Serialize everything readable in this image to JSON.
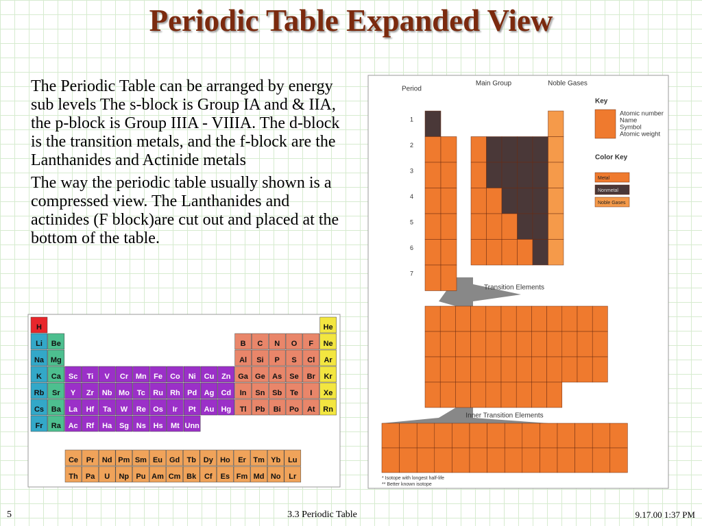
{
  "title": "Periodic Table Expanded View",
  "paragraphs": [
    "The Periodic Table can be arranged by  energy sub levels  The s-block is Group IA and & IIA, the p-block is Group IIIA - VIIIA.  The d-block is the transition metals, and the f-block are the Lanthanides and Actinide metals",
    "The way the periodic table usually shown  is a compressed view. The Lanthanides and actinides (F block)are cut out and placed at the bottom of the table."
  ],
  "compressed_table": {
    "periods": [
      [
        "H",
        "He"
      ],
      [
        "Li",
        "Be",
        "B",
        "C",
        "N",
        "O",
        "F",
        "Ne"
      ],
      [
        "Na",
        "Mg",
        "Al",
        "Si",
        "P",
        "S",
        "Cl",
        "Ar"
      ],
      [
        "K",
        "Ca",
        "Sc",
        "Ti",
        "V",
        "Cr",
        "Mn",
        "Fe",
        "Co",
        "Ni",
        "Cu",
        "Zn",
        "Ga",
        "Ge",
        "As",
        "Se",
        "Br",
        "Kr"
      ],
      [
        "Rb",
        "Sr",
        "Y",
        "Zr",
        "Nb",
        "Mo",
        "Tc",
        "Ru",
        "Rh",
        "Pd",
        "Ag",
        "Cd",
        "In",
        "Sn",
        "Sb",
        "Te",
        "I",
        "Xe"
      ],
      [
        "Cs",
        "Ba",
        "La",
        "Hf",
        "Ta",
        "W",
        "Re",
        "Os",
        "Ir",
        "Pt",
        "Au",
        "Hg",
        "Tl",
        "Pb",
        "Bi",
        "Po",
        "At",
        "Rn"
      ],
      [
        "Fr",
        "Ra",
        "Ac",
        "Rf",
        "Ha",
        "Sg",
        "Ns",
        "Hs",
        "Mt",
        "Unn"
      ]
    ],
    "f_block": [
      [
        "Ce",
        "Pr",
        "Nd",
        "Pm",
        "Sm",
        "Eu",
        "Gd",
        "Tb",
        "Dy",
        "Ho",
        "Er",
        "Tm",
        "Yb",
        "Lu"
      ],
      [
        "Th",
        "Pa",
        "U",
        "Np",
        "Pu",
        "Am",
        "Cm",
        "Bk",
        "Cf",
        "Es",
        "Fm",
        "Md",
        "No",
        "Lr"
      ]
    ]
  },
  "expanded_table": {
    "period_label": "Period",
    "main_group": "Main Group",
    "noble_gases": "Noble Gases",
    "period_numbers": [
      1,
      2,
      3,
      4,
      5,
      6,
      7
    ],
    "key_title": "Key",
    "key_items": [
      "Atomic number",
      "Name",
      "Symbol",
      "Atomic weight"
    ],
    "color_key_title": "Color Key",
    "color_key": [
      "Metal",
      "Nonmetal",
      "Noble Gases"
    ],
    "transition_title": "Transition Elements",
    "inner_transition_title": "Inner Transition Elements",
    "notes": [
      "* Isotope with longest half-life",
      "** Better known isotope"
    ]
  },
  "footer": {
    "page": "5",
    "center": "3.3  Periodic Table",
    "date": "9.17.00 1:37 PM"
  }
}
